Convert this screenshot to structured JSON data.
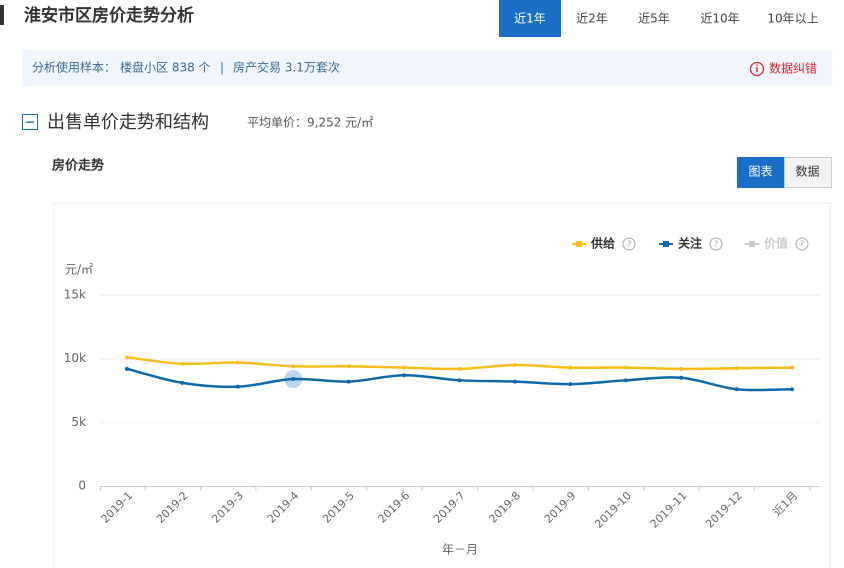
{
  "header": {
    "title": "淮安市区房价走势分析",
    "tabs": [
      "近1年",
      "近2年",
      "近5年",
      "近10年",
      "10年以上"
    ],
    "active_tab": 0
  },
  "info_bar": {
    "label": "分析使用样本：",
    "sample": "楼盘小区 838 个",
    "separator": "|",
    "trades": "房产交易 3.1万套次",
    "report": "数据纠错"
  },
  "section": {
    "title": "出售单价走势和结构",
    "average": "平均单价：9,252 元/㎡",
    "subtitle": "房价走势",
    "view_tabs": [
      "图表",
      "数据"
    ],
    "active_view": 0
  },
  "help_icon": "?",
  "chart_data": {
    "type": "line",
    "ylabel": "元/㎡",
    "xlabel": "年－月",
    "categories": [
      "2019-1",
      "2019-2",
      "2019-3",
      "2019-4",
      "2019-5",
      "2019-6",
      "2019-7",
      "2019-8",
      "2019-9",
      "2019-10",
      "2019-11",
      "2019-12",
      "近1月"
    ],
    "series": [
      {
        "name": "供给",
        "color": "#f7bd1c",
        "values": [
          10100,
          9600,
          9700,
          9400,
          9400,
          9300,
          9200,
          9500,
          9300,
          9300,
          9200,
          9250,
          9300
        ]
      },
      {
        "name": "关注",
        "color": "#0f68a9",
        "values": [
          9200,
          8100,
          7800,
          8400,
          8200,
          8700,
          8300,
          8200,
          8000,
          8300,
          8500,
          7600,
          7600
        ]
      },
      {
        "name": "价值",
        "color": "#cccccc",
        "values": [
          null,
          null,
          null,
          null,
          null,
          null,
          null,
          null,
          null,
          null,
          null,
          null,
          null
        ]
      }
    ],
    "ylim": [
      0,
      15000
    ],
    "yticks": [
      0,
      {
        "value": 5000,
        "label": "5k"
      },
      {
        "value": 10000,
        "label": "10k"
      },
      {
        "value": 15000,
        "label": "15k"
      }
    ],
    "grid": true
  }
}
